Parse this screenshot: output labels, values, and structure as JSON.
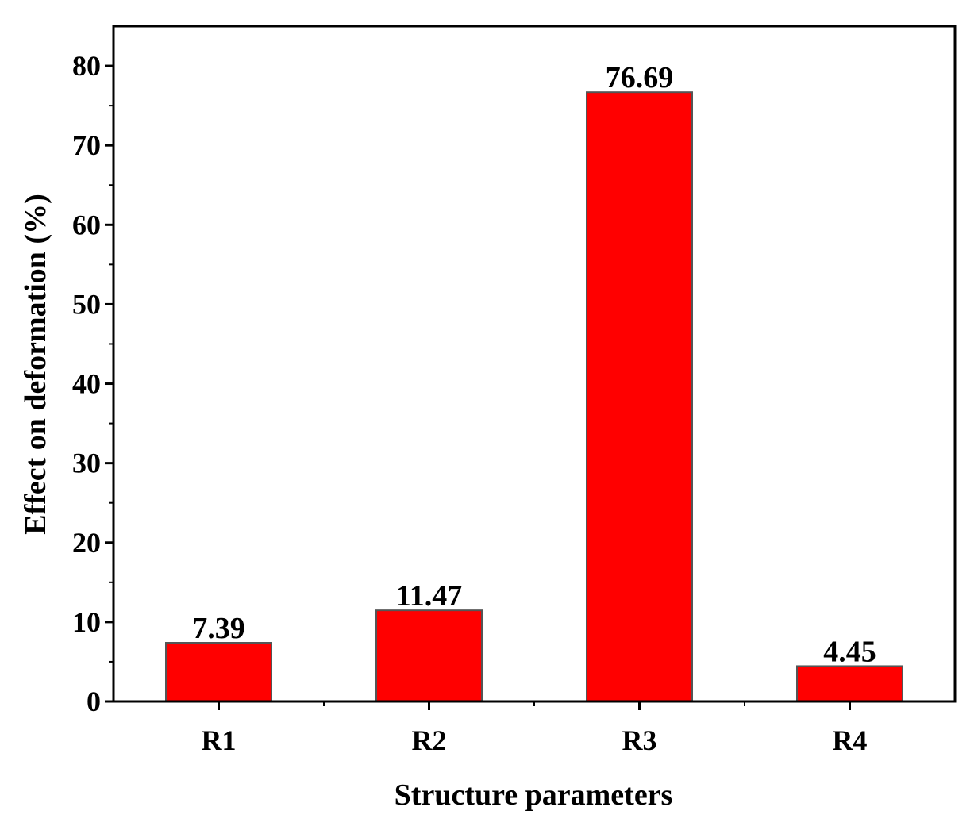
{
  "chart_data": {
    "type": "bar",
    "categories": [
      "R1",
      "R2",
      "R3",
      "R4"
    ],
    "values": [
      7.39,
      11.47,
      76.69,
      4.45
    ],
    "data_labels": [
      "7.39",
      "11.47",
      "76.69",
      "4.45"
    ],
    "xlabel": "Structure parameters",
    "ylabel": "Effect on deformation (%)",
    "ylim": [
      0,
      85
    ],
    "yticks": [
      0,
      10,
      20,
      30,
      40,
      50,
      60,
      70,
      80
    ],
    "bar_color": "#ff0000",
    "bar_edge_color": "#555555",
    "grid": false
  }
}
